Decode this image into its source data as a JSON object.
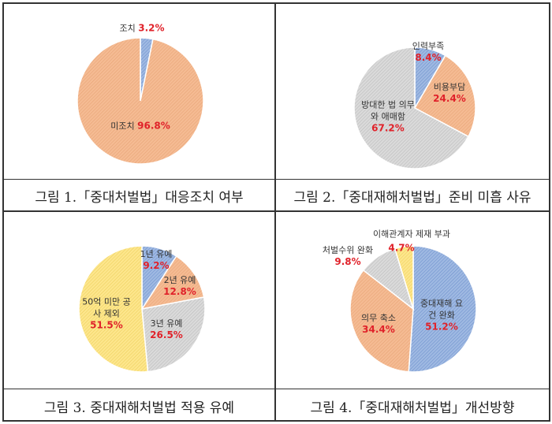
{
  "colors": {
    "blue": "#9fb9e2",
    "orange": "#f5bb93",
    "gray": "#dadada",
    "yellow": "#fde68c",
    "pct": "#e0222a"
  },
  "chart_data": [
    {
      "type": "pie",
      "caption": "그림 1.「중대처벌법」대응조치 여부",
      "slices": [
        {
          "label": "조치",
          "value": 3.2,
          "pct": "3.2%",
          "color": "blue"
        },
        {
          "label": "미조치",
          "value": 96.8,
          "pct": "96.8%",
          "color": "orange"
        }
      ]
    },
    {
      "type": "pie",
      "caption": "그림 2.「중대재해처벌법」준비 미흡 사유",
      "slices": [
        {
          "label": "인력부족",
          "value": 8.4,
          "pct": "8.4%",
          "color": "blue"
        },
        {
          "label": "비용부담",
          "value": 24.4,
          "pct": "24.4%",
          "color": "orange"
        },
        {
          "label": "방대한 법 의무와 애매함",
          "value": 67.2,
          "pct": "67.2%",
          "color": "gray"
        }
      ]
    },
    {
      "type": "pie",
      "caption": "그림 3. 중대재해처벌법 적용 유예",
      "slices": [
        {
          "label": "1년 유예",
          "value": 9.2,
          "pct": "9.2%",
          "color": "blue"
        },
        {
          "label": "2년 유예",
          "value": 12.8,
          "pct": "12.8%",
          "color": "orange"
        },
        {
          "label": "3년 유예",
          "value": 26.5,
          "pct": "26.5%",
          "color": "gray"
        },
        {
          "label": "50억 미만 공사 제외",
          "value": 51.5,
          "pct": "51.5%",
          "color": "yellow"
        }
      ]
    },
    {
      "type": "pie",
      "caption": "그림 4.「중대재해처벌법」개선방향",
      "slices": [
        {
          "label": "중대재해 요건 완화",
          "value": 51.2,
          "pct": "51.2%",
          "color": "blue"
        },
        {
          "label": "의무 축소",
          "value": 34.4,
          "pct": "34.4%",
          "color": "orange"
        },
        {
          "label": "처벌수위 완화",
          "value": 9.8,
          "pct": "9.8%",
          "color": "gray"
        },
        {
          "label": "이해관계자 제재 부과",
          "value": 4.7,
          "pct": "4.7%",
          "color": "yellow"
        }
      ]
    }
  ]
}
